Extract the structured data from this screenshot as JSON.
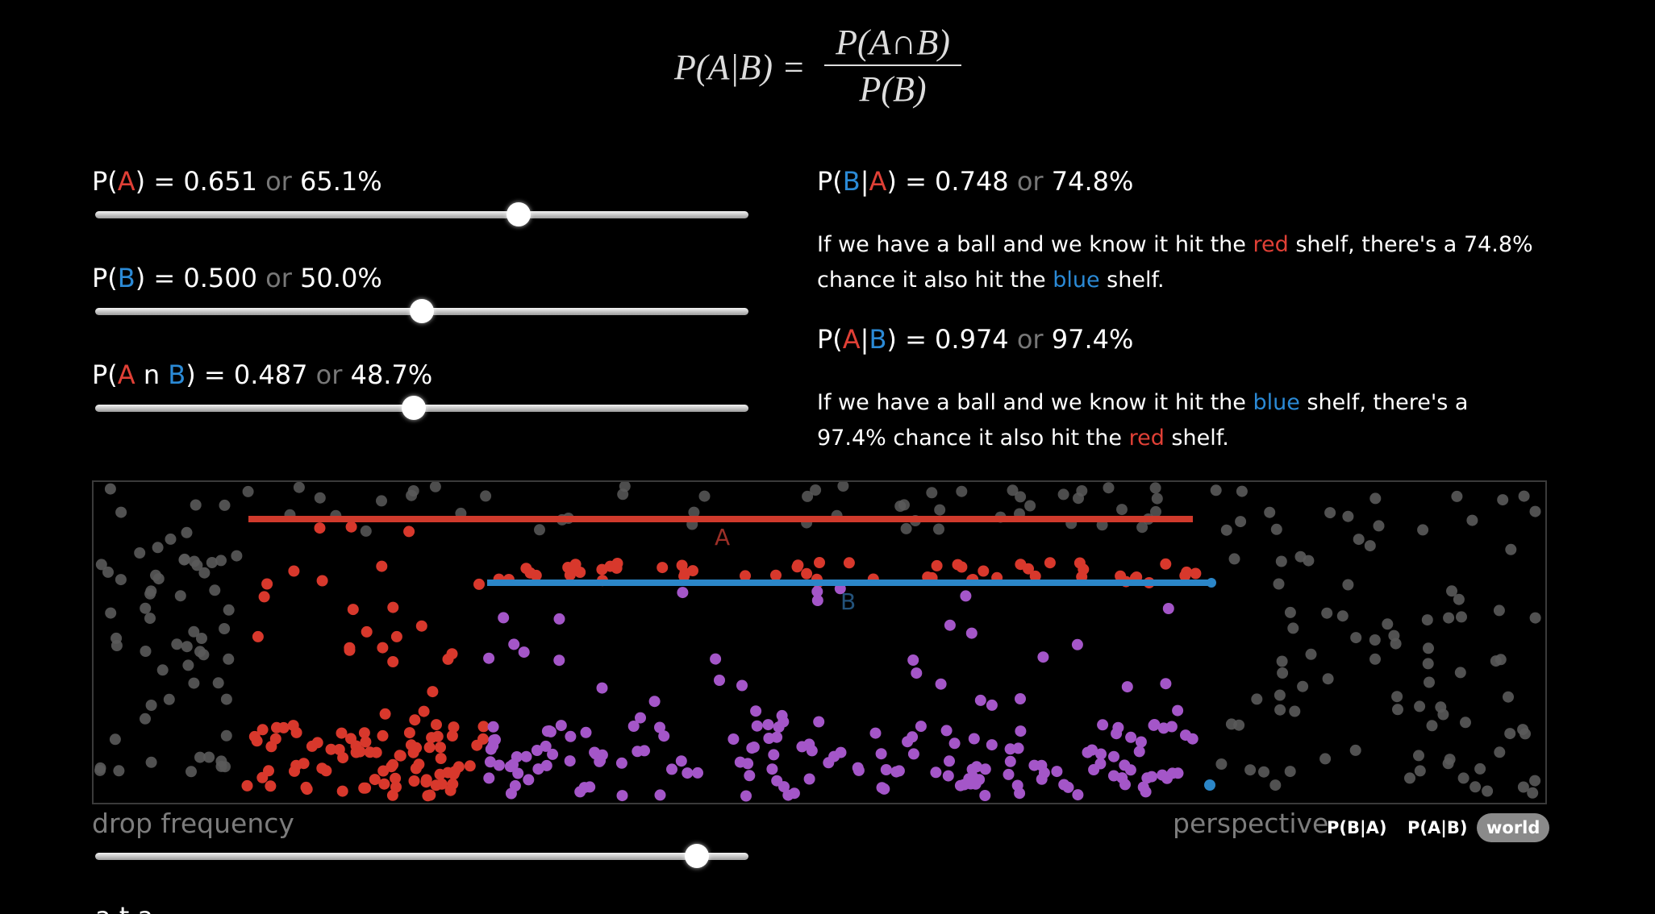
{
  "formula": {
    "lhs": "P(A|B) =",
    "numerator": "P(A∩B)",
    "denominator": "P(B)"
  },
  "sliders": {
    "p_a": {
      "label_prefix": "P(",
      "event": "A",
      "label_suffix": ") = ",
      "value_text": "0.651",
      "or_text": " or ",
      "percent_text": "65.1%",
      "value": 0.651
    },
    "p_b": {
      "label_prefix": "P(",
      "event": "B",
      "label_suffix": ") = ",
      "value_text": "0.500",
      "or_text": " or ",
      "percent_text": "50.0%",
      "value": 0.5
    },
    "p_ab": {
      "label_prefix": "P(",
      "event_a": "A",
      "mid": " n ",
      "event_b": "B",
      "label_suffix": ") = ",
      "value_text": "0.487",
      "or_text": " or ",
      "percent_text": "48.7%",
      "value": 0.487
    }
  },
  "conditionals": {
    "b_given_a": {
      "prefix": "P(",
      "first": "B",
      "bar": "|",
      "second": "A",
      "suffix": ") = ",
      "value_text": "0.748",
      "or_text": " or ",
      "percent_text": "74.8%",
      "desc_1": "If we have a ball and we know it hit the ",
      "desc_color_1": "red",
      "desc_2": " shelf, there's a 74.8% chance it also hit the ",
      "desc_color_2": "blue",
      "desc_3": " shelf."
    },
    "a_given_b": {
      "prefix": "P(",
      "first": "A",
      "bar": "|",
      "second": "B",
      "suffix": ") = ",
      "value_text": "0.974",
      "or_text": " or ",
      "percent_text": "97.4%",
      "desc_1": "If we have a ball and we know it hit the ",
      "desc_color_1": "blue",
      "desc_2": " shelf, there's a 97.4% chance it also hit the ",
      "desc_color_2": "red",
      "desc_3": " shelf."
    }
  },
  "simulation": {
    "shelf_a_label": "A",
    "shelf_b_label": "B",
    "shelf_a_color": "#d03a2c",
    "shelf_b_color": "#2b86c8",
    "ball_colors": {
      "gray": "#5a5a5a",
      "red": "#d8382c",
      "purple": "#a456c8",
      "blue": "#2b86c8"
    }
  },
  "controls": {
    "drop_frequency_label": "drop frequency",
    "drop_frequency_value": 0.93,
    "perspective_label": "perspective",
    "perspective_options": [
      "P(B|A)",
      "P(A|B)",
      "world"
    ],
    "perspective_selected": "world"
  },
  "footer_partial_text": "a    t  a"
}
